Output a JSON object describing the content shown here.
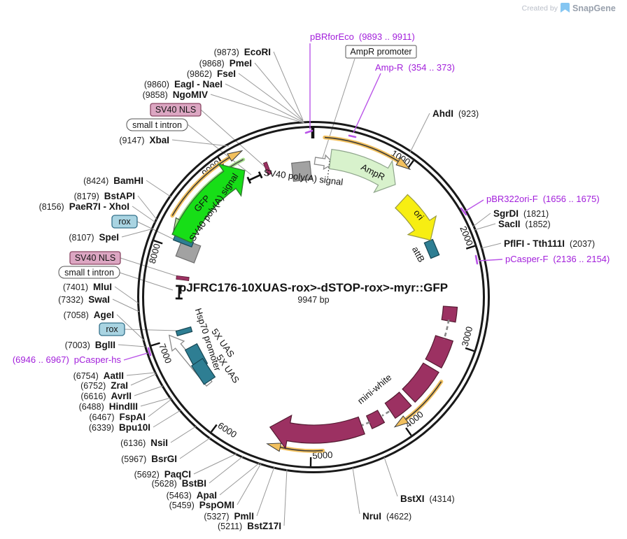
{
  "watermark": {
    "created_by": "Created by",
    "brand": "SnapGene"
  },
  "plasmid": {
    "name": "pJFRC176-10XUAS-rox>-dSTOP-rox>-myr::GFP",
    "size": "9947 bp"
  },
  "tick_labels": [
    "1000",
    "2000",
    "3000",
    "4000",
    "5000",
    "6000",
    "7000",
    "8000",
    "9000"
  ],
  "features": {
    "gfp": "GFP",
    "sv40_polya_left": "SV40 poly(A) signal",
    "sv40_polya_top": "SV40 poly(A) signal",
    "ampr": "AmpR",
    "ori": "ori",
    "attb": "attB",
    "mini_white": "mini-white",
    "hsp70_promoter": "Hsp70 promoter",
    "uas_1": "5X UAS",
    "uas_2": "5X UAS"
  },
  "boxed_callouts": {
    "sv40_nls_top": "SV40 NLS",
    "small_t_intron_top": "small t intron",
    "rox_top": "rox",
    "sv40_nls_left": "SV40 NLS",
    "small_t_intron_left": "small t intron",
    "rox_left": "rox",
    "ampr_promoter": "AmpR promoter"
  },
  "enzyme_callouts_pos_first": [
    {
      "pos": "(9873)",
      "name": "EcoRI"
    },
    {
      "pos": "(9868)",
      "name": "PmeI"
    },
    {
      "pos": "(9862)",
      "name": "FseI"
    },
    {
      "pos": "(9860)",
      "name": "EagI - NaeI"
    },
    {
      "pos": "(9858)",
      "name": "NgoMIV"
    },
    {
      "pos": "(9147)",
      "name": "XbaI"
    },
    {
      "pos": "(8424)",
      "name": "BamHI"
    },
    {
      "pos": "(8179)",
      "name": "BstAPI"
    },
    {
      "pos": "(8156)",
      "name": "PaeR7I - XhoI"
    },
    {
      "pos": "(8107)",
      "name": "SpeI"
    },
    {
      "pos": "(7401)",
      "name": "MluI"
    },
    {
      "pos": "(7332)",
      "name": "SwaI"
    },
    {
      "pos": "(7058)",
      "name": "AgeI"
    },
    {
      "pos": "(7003)",
      "name": "BglII"
    },
    {
      "pos": "(6754)",
      "name": "AatII"
    },
    {
      "pos": "(6752)",
      "name": "ZraI"
    },
    {
      "pos": "(6616)",
      "name": "AvrII"
    },
    {
      "pos": "(6488)",
      "name": "HindIII"
    },
    {
      "pos": "(6467)",
      "name": "FspAI"
    },
    {
      "pos": "(6339)",
      "name": "Bpu10I"
    },
    {
      "pos": "(6136)",
      "name": "NsiI"
    },
    {
      "pos": "(5967)",
      "name": "BsrGI"
    },
    {
      "pos": "(5692)",
      "name": "PaqCI"
    },
    {
      "pos": "(5628)",
      "name": "BstBI"
    },
    {
      "pos": "(5463)",
      "name": "ApaI"
    },
    {
      "pos": "(5459)",
      "name": "PspOMI"
    },
    {
      "pos": "(5327)",
      "name": "PmlI"
    },
    {
      "pos": "(5211)",
      "name": "BstZ17I"
    }
  ],
  "enzyme_callouts_name_first": [
    {
      "name": "AhdI",
      "pos": "(923)"
    },
    {
      "name": "SgrDI",
      "pos": "(1821)"
    },
    {
      "name": "SacII",
      "pos": "(1852)"
    },
    {
      "name": "PflFI - Tth111I",
      "pos": "(2037)"
    },
    {
      "name": "BstXI",
      "pos": "(4314)"
    },
    {
      "name": "NruI",
      "pos": "(4622)"
    }
  ],
  "primer_callouts": [
    {
      "name": "pBRforEco",
      "pos": "(9893 .. 9911)",
      "pos_first": false
    },
    {
      "name": "Amp-R",
      "pos": "(354 .. 373)",
      "pos_first": false
    },
    {
      "name": "pBR322ori-F",
      "pos": "(1656 .. 1675)",
      "pos_first": false
    },
    {
      "name": "pCasper-F",
      "pos": "(2136 .. 2154)",
      "pos_first": false
    },
    {
      "name": "pCasper-hs",
      "pos": "(6946 .. 6967)",
      "pos_first": true
    }
  ],
  "colors": {
    "purple_text": "#A21FDB",
    "purple_line": "#BA55E8",
    "gfp_green": "#17DE17",
    "gfp_border": "#2E7D2E",
    "ampr_fill": "#D8F2CC",
    "ori_yellow": "#F7EE12",
    "feature_teal": "#2E7E93",
    "mini_white_maroon": "#9C3162",
    "mini_white_border": "#541A31",
    "orf_orange": "#F2C05E",
    "direction_green": "#A8E08E",
    "nls_pink": "#DCA6C2",
    "nls_border": "#8A4663",
    "rox_blue": "#A9D4E2",
    "rox_border": "#34708A",
    "gray_feature": "#A2A2A2",
    "ring_black": "#191919",
    "leader_gray": "#999999",
    "watermark_gray": "#B9BEC8",
    "snapgene_blue": "#85C6F2"
  }
}
